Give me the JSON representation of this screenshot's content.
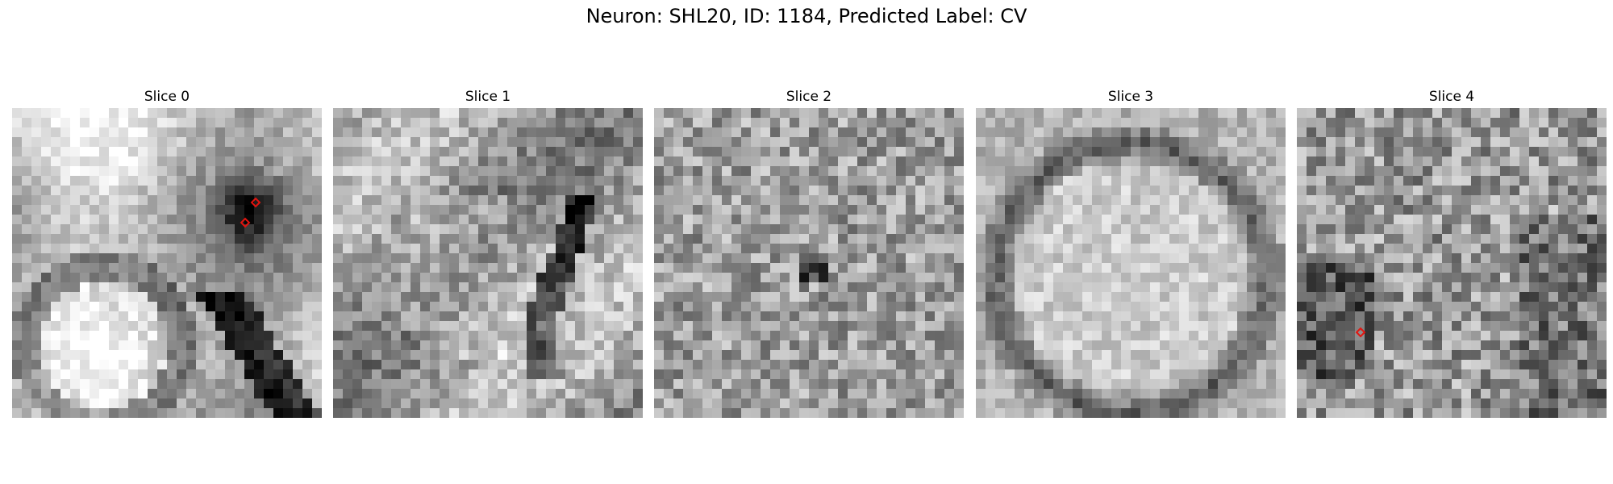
{
  "figure": {
    "title": "Neuron: SHL20, ID: 1184, Predicted Label: CV"
  },
  "panels": [
    {
      "title": "Slice 0"
    },
    {
      "title": "Slice 1"
    },
    {
      "title": "Slice 2"
    },
    {
      "title": "Slice 3"
    },
    {
      "title": "Slice 4"
    }
  ],
  "colors": {
    "marker": "#e3140f",
    "colormap": "gray"
  }
}
